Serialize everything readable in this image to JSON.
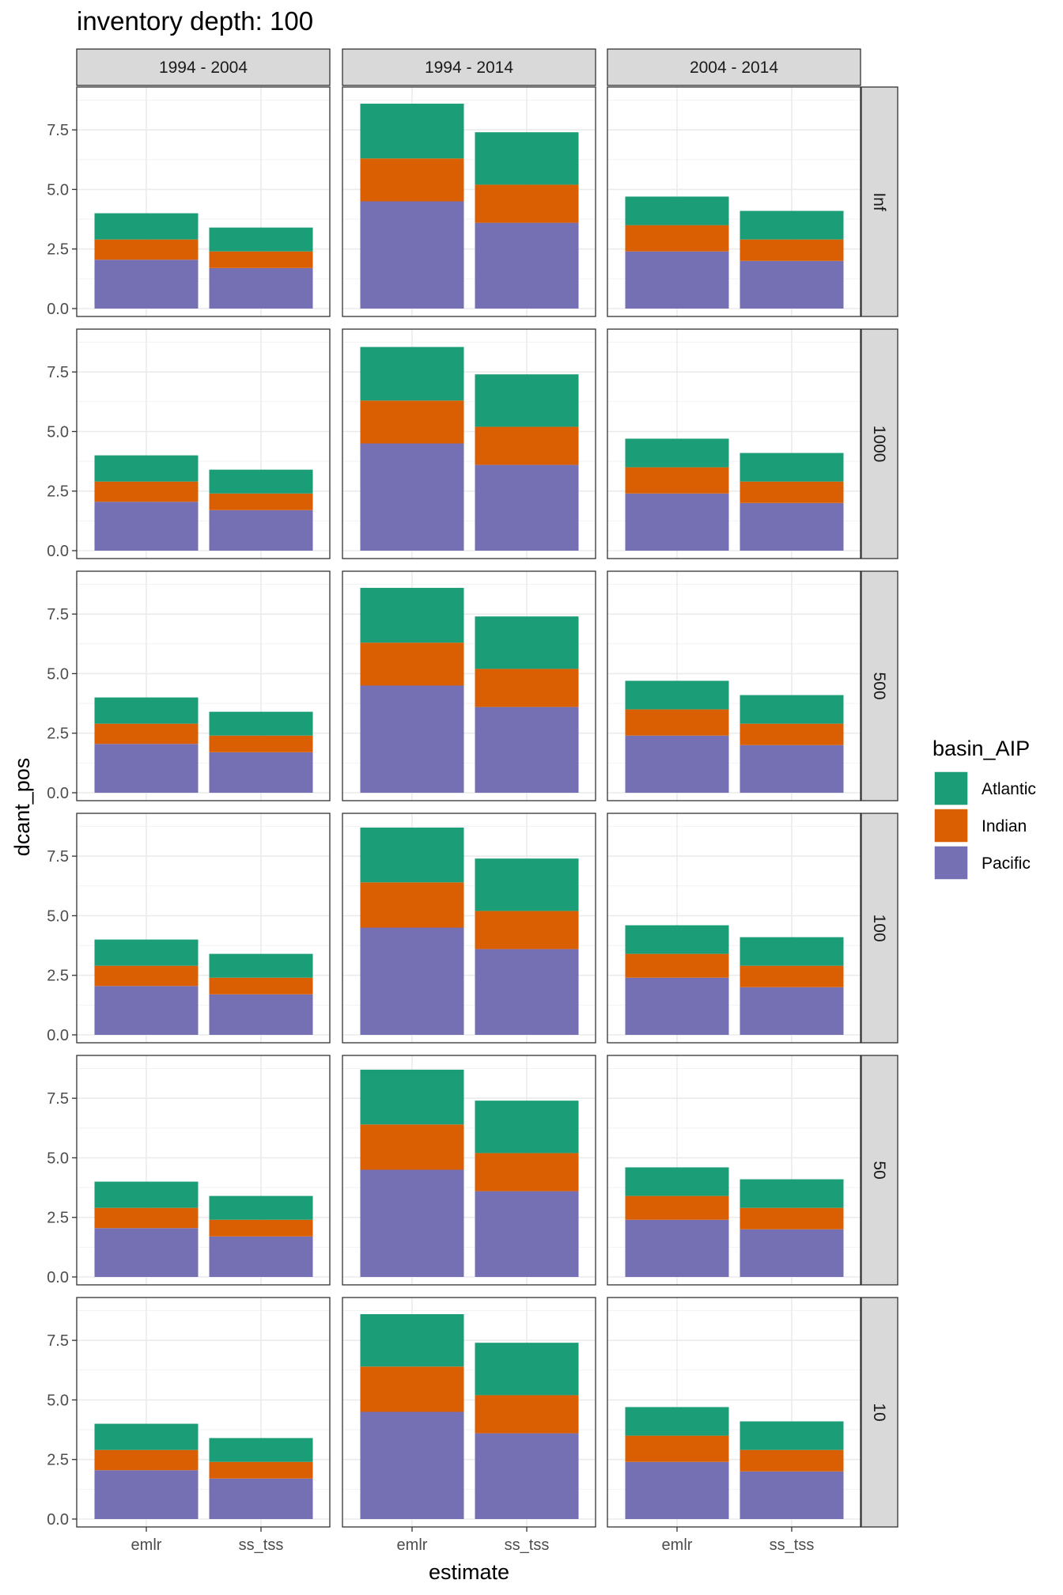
{
  "chart_data": {
    "type": "bar",
    "stacked": true,
    "title": "inventory depth: 100",
    "xlabel": "estimate",
    "ylabel": "dcant_pos",
    "categories": [
      "emlr",
      "ss_tss"
    ],
    "ylim": [
      0,
      8.9
    ],
    "yticks": [
      "0.0",
      "2.5",
      "5.0",
      "7.5"
    ],
    "ytick_values": [
      0,
      2.5,
      5,
      7.5
    ],
    "column_facets": [
      "1994 - 2004",
      "1994 - 2014",
      "2004 - 2014"
    ],
    "row_facets": [
      "Inf",
      "1000",
      "500",
      "100",
      "50",
      "10"
    ],
    "legend": {
      "title": "basin_AIP",
      "position": "right",
      "entries": [
        {
          "name": "Atlantic",
          "color": "#1B9E77"
        },
        {
          "name": "Indian",
          "color": "#D95F02"
        },
        {
          "name": "Pacific",
          "color": "#7570B3"
        }
      ]
    },
    "stack_order": [
      "Pacific",
      "Indian",
      "Atlantic"
    ],
    "grid": true,
    "panels": [
      {
        "row": "Inf",
        "col": "1994 - 2004",
        "bars": {
          "emlr": {
            "Pacific": 2.05,
            "Indian": 0.85,
            "Atlantic": 1.1
          },
          "ss_tss": {
            "Pacific": 1.7,
            "Indian": 0.7,
            "Atlantic": 1.0
          }
        }
      },
      {
        "row": "Inf",
        "col": "1994 - 2014",
        "bars": {
          "emlr": {
            "Pacific": 4.5,
            "Indian": 1.8,
            "Atlantic": 2.3
          },
          "ss_tss": {
            "Pacific": 3.6,
            "Indian": 1.6,
            "Atlantic": 2.2
          }
        }
      },
      {
        "row": "Inf",
        "col": "2004 - 2014",
        "bars": {
          "emlr": {
            "Pacific": 2.4,
            "Indian": 1.1,
            "Atlantic": 1.2
          },
          "ss_tss": {
            "Pacific": 2.0,
            "Indian": 0.9,
            "Atlantic": 1.2
          }
        }
      },
      {
        "row": "1000",
        "col": "1994 - 2004",
        "bars": {
          "emlr": {
            "Pacific": 2.05,
            "Indian": 0.85,
            "Atlantic": 1.1
          },
          "ss_tss": {
            "Pacific": 1.7,
            "Indian": 0.7,
            "Atlantic": 1.0
          }
        }
      },
      {
        "row": "1000",
        "col": "1994 - 2014",
        "bars": {
          "emlr": {
            "Pacific": 4.5,
            "Indian": 1.8,
            "Atlantic": 2.25
          },
          "ss_tss": {
            "Pacific": 3.6,
            "Indian": 1.6,
            "Atlantic": 2.2
          }
        }
      },
      {
        "row": "1000",
        "col": "2004 - 2014",
        "bars": {
          "emlr": {
            "Pacific": 2.4,
            "Indian": 1.1,
            "Atlantic": 1.2
          },
          "ss_tss": {
            "Pacific": 2.0,
            "Indian": 0.9,
            "Atlantic": 1.2
          }
        }
      },
      {
        "row": "500",
        "col": "1994 - 2004",
        "bars": {
          "emlr": {
            "Pacific": 2.05,
            "Indian": 0.85,
            "Atlantic": 1.1
          },
          "ss_tss": {
            "Pacific": 1.7,
            "Indian": 0.7,
            "Atlantic": 1.0
          }
        }
      },
      {
        "row": "500",
        "col": "1994 - 2014",
        "bars": {
          "emlr": {
            "Pacific": 4.5,
            "Indian": 1.8,
            "Atlantic": 2.3
          },
          "ss_tss": {
            "Pacific": 3.6,
            "Indian": 1.6,
            "Atlantic": 2.2
          }
        }
      },
      {
        "row": "500",
        "col": "2004 - 2014",
        "bars": {
          "emlr": {
            "Pacific": 2.4,
            "Indian": 1.1,
            "Atlantic": 1.2
          },
          "ss_tss": {
            "Pacific": 2.0,
            "Indian": 0.9,
            "Atlantic": 1.2
          }
        }
      },
      {
        "row": "100",
        "col": "1994 - 2004",
        "bars": {
          "emlr": {
            "Pacific": 2.05,
            "Indian": 0.85,
            "Atlantic": 1.1
          },
          "ss_tss": {
            "Pacific": 1.7,
            "Indian": 0.7,
            "Atlantic": 1.0
          }
        }
      },
      {
        "row": "100",
        "col": "1994 - 2014",
        "bars": {
          "emlr": {
            "Pacific": 4.5,
            "Indian": 1.9,
            "Atlantic": 2.3
          },
          "ss_tss": {
            "Pacific": 3.6,
            "Indian": 1.6,
            "Atlantic": 2.2
          }
        }
      },
      {
        "row": "100",
        "col": "2004 - 2014",
        "bars": {
          "emlr": {
            "Pacific": 2.4,
            "Indian": 1.0,
            "Atlantic": 1.2
          },
          "ss_tss": {
            "Pacific": 2.0,
            "Indian": 0.9,
            "Atlantic": 1.2
          }
        }
      },
      {
        "row": "50",
        "col": "1994 - 2004",
        "bars": {
          "emlr": {
            "Pacific": 2.05,
            "Indian": 0.85,
            "Atlantic": 1.1
          },
          "ss_tss": {
            "Pacific": 1.7,
            "Indian": 0.7,
            "Atlantic": 1.0
          }
        }
      },
      {
        "row": "50",
        "col": "1994 - 2014",
        "bars": {
          "emlr": {
            "Pacific": 4.5,
            "Indian": 1.9,
            "Atlantic": 2.3
          },
          "ss_tss": {
            "Pacific": 3.6,
            "Indian": 1.6,
            "Atlantic": 2.2
          }
        }
      },
      {
        "row": "50",
        "col": "2004 - 2014",
        "bars": {
          "emlr": {
            "Pacific": 2.4,
            "Indian": 1.0,
            "Atlantic": 1.2
          },
          "ss_tss": {
            "Pacific": 2.0,
            "Indian": 0.9,
            "Atlantic": 1.2
          }
        }
      },
      {
        "row": "10",
        "col": "1994 - 2004",
        "bars": {
          "emlr": {
            "Pacific": 2.05,
            "Indian": 0.85,
            "Atlantic": 1.1
          },
          "ss_tss": {
            "Pacific": 1.7,
            "Indian": 0.7,
            "Atlantic": 1.0
          }
        }
      },
      {
        "row": "10",
        "col": "1994 - 2014",
        "bars": {
          "emlr": {
            "Pacific": 4.5,
            "Indian": 1.9,
            "Atlantic": 2.2
          },
          "ss_tss": {
            "Pacific": 3.6,
            "Indian": 1.6,
            "Atlantic": 2.2
          }
        }
      },
      {
        "row": "10",
        "col": "2004 - 2014",
        "bars": {
          "emlr": {
            "Pacific": 2.4,
            "Indian": 1.1,
            "Atlantic": 1.2
          },
          "ss_tss": {
            "Pacific": 2.0,
            "Indian": 0.9,
            "Atlantic": 1.2
          }
        }
      }
    ]
  }
}
